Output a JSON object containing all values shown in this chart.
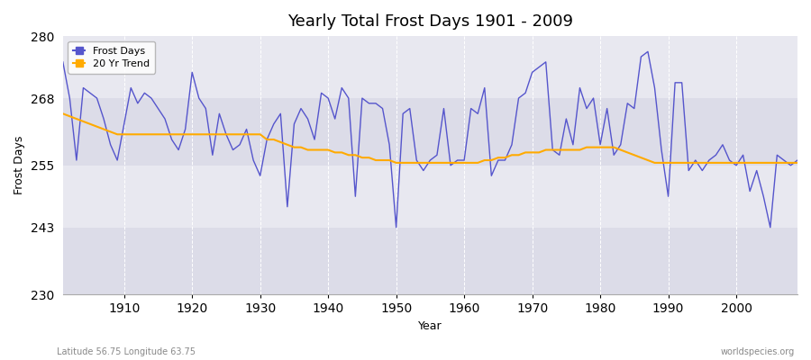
{
  "title": "Yearly Total Frost Days 1901 - 2009",
  "xlabel": "Year",
  "ylabel": "Frost Days",
  "footnote_left": "Latitude 56.75 Longitude 63.75",
  "footnote_right": "worldspecies.org",
  "ylim": [
    230,
    280
  ],
  "yticks": [
    230,
    243,
    255,
    268,
    280
  ],
  "xlim": [
    1901,
    2009
  ],
  "bg_color": "#f0f0f8",
  "band_colors": [
    "#e8e8f0",
    "#d8d8e8"
  ],
  "line_color": "#5555cc",
  "trend_color": "#ffaa00",
  "years": [
    1901,
    1902,
    1903,
    1904,
    1905,
    1906,
    1907,
    1908,
    1909,
    1910,
    1911,
    1912,
    1913,
    1914,
    1915,
    1916,
    1917,
    1918,
    1919,
    1920,
    1921,
    1922,
    1923,
    1924,
    1925,
    1926,
    1927,
    1928,
    1929,
    1930,
    1931,
    1932,
    1933,
    1934,
    1935,
    1936,
    1937,
    1938,
    1939,
    1940,
    1941,
    1942,
    1943,
    1944,
    1945,
    1946,
    1947,
    1948,
    1949,
    1950,
    1951,
    1952,
    1953,
    1954,
    1955,
    1956,
    1957,
    1958,
    1959,
    1960,
    1961,
    1962,
    1963,
    1964,
    1965,
    1966,
    1967,
    1968,
    1969,
    1970,
    1971,
    1972,
    1973,
    1974,
    1975,
    1976,
    1977,
    1978,
    1979,
    1980,
    1981,
    1982,
    1983,
    1984,
    1985,
    1986,
    1987,
    1988,
    1989,
    1990,
    1991,
    1992,
    1993,
    1994,
    1995,
    1996,
    1997,
    1998,
    1999,
    2000,
    2001,
    2002,
    2003,
    2004,
    2005,
    2006,
    2007,
    2008,
    2009
  ],
  "frost_days": [
    275,
    268,
    256,
    270,
    269,
    268,
    264,
    259,
    256,
    263,
    270,
    267,
    269,
    268,
    266,
    264,
    260,
    258,
    262,
    273,
    268,
    266,
    257,
    265,
    261,
    258,
    259,
    262,
    256,
    253,
    260,
    263,
    265,
    247,
    263,
    266,
    264,
    260,
    269,
    268,
    264,
    270,
    268,
    249,
    268,
    267,
    267,
    266,
    259,
    243,
    265,
    266,
    256,
    254,
    256,
    257,
    266,
    255,
    256,
    256,
    266,
    265,
    270,
    253,
    256,
    256,
    259,
    268,
    269,
    273,
    274,
    275,
    258,
    257,
    264,
    259,
    270,
    266,
    268,
    259,
    266,
    257,
    259,
    267,
    266,
    276,
    277,
    270,
    258,
    249,
    271,
    271,
    254,
    256,
    254,
    256,
    257,
    259,
    256,
    255,
    257,
    250,
    254,
    249,
    243,
    257,
    256,
    255,
    256
  ],
  "trend": [
    265,
    264.5,
    264,
    263.5,
    263,
    262.5,
    262,
    261.5,
    261,
    261,
    261,
    261,
    261,
    261,
    261,
    261,
    261,
    261,
    261,
    261,
    261,
    261,
    261,
    261,
    261,
    261,
    261,
    261,
    261,
    261,
    260,
    260,
    259.5,
    259,
    258.5,
    258.5,
    258,
    258,
    258,
    258,
    257.5,
    257.5,
    257,
    257,
    256.5,
    256.5,
    256,
    256,
    256,
    255.5,
    255.5,
    255.5,
    255.5,
    255.5,
    255.5,
    255.5,
    255.5,
    255.5,
    255.5,
    255.5,
    255.5,
    255.5,
    256,
    256,
    256.5,
    256.5,
    257,
    257,
    257.5,
    257.5,
    257.5,
    258,
    258,
    258,
    258,
    258,
    258,
    258.5,
    258.5,
    258.5,
    258.5,
    258.5,
    258,
    257.5,
    257,
    256.5,
    256,
    255.5,
    255.5,
    255.5,
    255.5,
    255.5,
    255.5,
    255.5,
    255.5,
    255.5,
    255.5,
    255.5,
    255.5,
    255.5,
    255.5,
    255.5,
    255.5,
    255.5,
    255.5,
    255.5,
    255.5,
    255.5,
    255.5
  ]
}
